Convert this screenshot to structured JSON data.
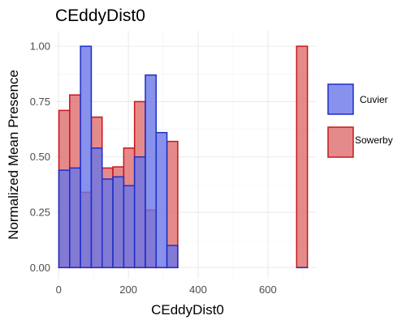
{
  "chart_data": {
    "type": "bar",
    "title": "CEddyDist0",
    "xlabel": "CEddyDist0",
    "ylabel": "Normalized Mean Presence",
    "xlim": [
      -10,
      740
    ],
    "ylim": [
      -0.05,
      1.07
    ],
    "xticks": [
      0,
      200,
      400,
      600
    ],
    "xtick_labels": [
      "0",
      "200",
      "400",
      "600"
    ],
    "yticks": [
      0,
      0.25,
      0.5,
      0.75,
      1.0
    ],
    "ytick_labels": [
      "0.00",
      "0.25",
      "0.50",
      "0.75",
      "1.00"
    ],
    "bin_width": 31,
    "legend_position": "right",
    "series": [
      {
        "name": "Cuvier",
        "fill": "#6a76e6",
        "stroke": "#1c2fc8",
        "bins": [
          {
            "x": 16,
            "y": 0.44
          },
          {
            "x": 47,
            "y": 0.45
          },
          {
            "x": 78,
            "y": 1.0
          },
          {
            "x": 109,
            "y": 0.54
          },
          {
            "x": 140,
            "y": 0.4
          },
          {
            "x": 171,
            "y": 0.41
          },
          {
            "x": 202,
            "y": 0.37
          },
          {
            "x": 233,
            "y": 0.5
          },
          {
            "x": 264,
            "y": 0.87
          },
          {
            "x": 295,
            "y": 0.61
          },
          {
            "x": 326,
            "y": 0.1
          },
          {
            "x": 698,
            "y": 0.0
          }
        ]
      },
      {
        "name": "Sowerby",
        "fill": "#df6d6d",
        "stroke": "#c8161c",
        "bins": [
          {
            "x": 16,
            "y": 0.71
          },
          {
            "x": 47,
            "y": 0.78
          },
          {
            "x": 78,
            "y": 0.34
          },
          {
            "x": 109,
            "y": 0.68
          },
          {
            "x": 140,
            "y": 0.45
          },
          {
            "x": 171,
            "y": 0.455
          },
          {
            "x": 202,
            "y": 0.54
          },
          {
            "x": 233,
            "y": 0.75
          },
          {
            "x": 264,
            "y": 0.26
          },
          {
            "x": 295,
            "y": 0.0
          },
          {
            "x": 326,
            "y": 0.57
          },
          {
            "x": 698,
            "y": 1.0
          }
        ]
      }
    ]
  }
}
